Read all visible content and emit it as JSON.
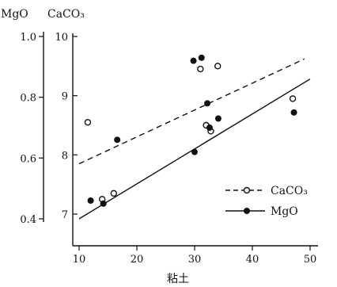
{
  "chart_data": {
    "type": "scatter",
    "xlabel": "粘土",
    "x_ticks": [
      "10",
      "20",
      "30",
      "40",
      "50"
    ],
    "xlim": [
      10,
      52
    ],
    "left_axis": {
      "label": "MgO",
      "ticks": [
        "0.4",
        "0.6",
        "0.8",
        "1.0"
      ],
      "lim": [
        0.4,
        1.0
      ]
    },
    "right_axis": {
      "label": "CaCO₃",
      "ticks": [
        "7",
        "8",
        "9",
        "10"
      ],
      "lim": [
        7,
        10
      ]
    },
    "legend_position": "bottom-right",
    "series": [
      {
        "name": "CaCO₃",
        "marker": "open-circle",
        "axis": "CaCO₃",
        "points": [
          [
            11.5,
            8.55
          ],
          [
            14,
            7.25
          ],
          [
            16,
            7.35
          ],
          [
            31,
            9.45
          ],
          [
            32,
            8.5
          ],
          [
            32.8,
            8.4
          ],
          [
            34,
            9.5
          ],
          [
            47,
            8.95
          ]
        ],
        "trend": {
          "style": "dashed",
          "from": [
            10,
            7.85
          ],
          "to": [
            49,
            9.62
          ]
        }
      },
      {
        "name": "MgO",
        "marker": "filled-circle",
        "axis": "MgO",
        "points": [
          [
            12,
            0.46
          ],
          [
            14.2,
            0.45
          ],
          [
            16.6,
            0.66
          ],
          [
            29.8,
            0.92
          ],
          [
            30,
            0.62
          ],
          [
            31.2,
            0.93
          ],
          [
            32.2,
            0.78
          ],
          [
            32.6,
            0.7
          ],
          [
            34.1,
            0.73
          ],
          [
            47.2,
            0.75
          ]
        ],
        "trend": {
          "style": "solid",
          "from": [
            10,
            0.4
          ],
          "to": [
            50,
            0.86
          ]
        }
      }
    ]
  }
}
